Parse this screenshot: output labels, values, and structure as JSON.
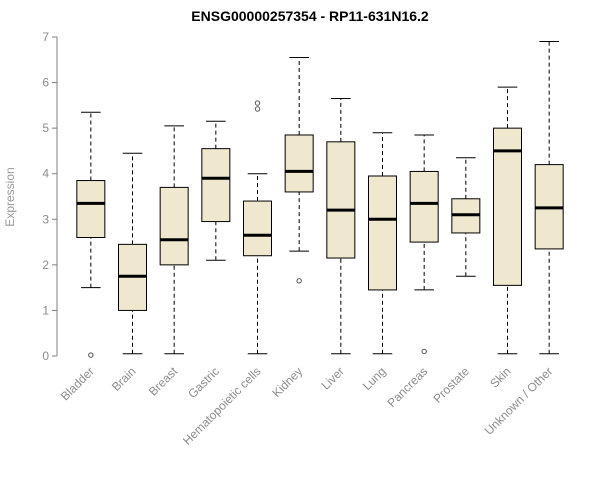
{
  "chart_data": {
    "type": "boxplot",
    "title": "ENSG00000257354 - RP11-631N16.2",
    "ylabel": "Expression",
    "ylim": [
      0,
      7
    ],
    "yticks": [
      0,
      1,
      2,
      3,
      4,
      5,
      6,
      7
    ],
    "grid": false,
    "legend": "none",
    "box_fill": "#EFE8CF",
    "box_stroke": "#000000",
    "axis_color": "#808080",
    "label_color": "#8c8c8c",
    "title_color": "#000000",
    "outlier_color": "#555555",
    "categories": [
      "Bladder",
      "Brain",
      "Breast",
      "Gastric",
      "Hematopoietic cells",
      "Kidney",
      "Liver",
      "Lung",
      "Pancreas",
      "Prostate",
      "Skin",
      "Unknown / Other"
    ],
    "boxes": [
      {
        "category": "Bladder",
        "low": 1.5,
        "q1": 2.6,
        "median": 3.35,
        "q3": 3.85,
        "high": 5.35,
        "outliers": [
          0.02
        ]
      },
      {
        "category": "Brain",
        "low": 0.05,
        "q1": 1.0,
        "median": 1.75,
        "q3": 2.45,
        "high": 4.45,
        "outliers": []
      },
      {
        "category": "Breast",
        "low": 0.05,
        "q1": 2.0,
        "median": 2.55,
        "q3": 3.7,
        "high": 5.05,
        "outliers": []
      },
      {
        "category": "Gastric",
        "low": 2.1,
        "q1": 2.95,
        "median": 3.9,
        "q3": 4.55,
        "high": 5.15,
        "outliers": []
      },
      {
        "category": "Hematopoietic cells",
        "low": 0.05,
        "q1": 2.2,
        "median": 2.65,
        "q3": 3.4,
        "high": 4.0,
        "outliers": [
          5.42,
          5.55
        ]
      },
      {
        "category": "Kidney",
        "low": 2.3,
        "q1": 3.6,
        "median": 4.05,
        "q3": 4.85,
        "high": 6.55,
        "outliers": [
          1.65
        ]
      },
      {
        "category": "Liver",
        "low": 0.05,
        "q1": 2.15,
        "median": 3.2,
        "q3": 4.7,
        "high": 5.65,
        "outliers": []
      },
      {
        "category": "Lung",
        "low": 0.05,
        "q1": 1.45,
        "median": 3.0,
        "q3": 3.95,
        "high": 4.9,
        "outliers": []
      },
      {
        "category": "Pancreas",
        "low": 1.45,
        "q1": 2.5,
        "median": 3.35,
        "q3": 4.05,
        "high": 4.85,
        "outliers": [
          0.1
        ]
      },
      {
        "category": "Prostate",
        "low": 1.75,
        "q1": 2.7,
        "median": 3.1,
        "q3": 3.45,
        "high": 4.35,
        "outliers": []
      },
      {
        "category": "Skin",
        "low": 0.05,
        "q1": 1.55,
        "median": 4.5,
        "q3": 5.0,
        "high": 5.9,
        "outliers": []
      },
      {
        "category": "Unknown / Other",
        "low": 0.05,
        "q1": 2.35,
        "median": 3.25,
        "q3": 4.2,
        "high": 6.9,
        "outliers": []
      }
    ]
  }
}
